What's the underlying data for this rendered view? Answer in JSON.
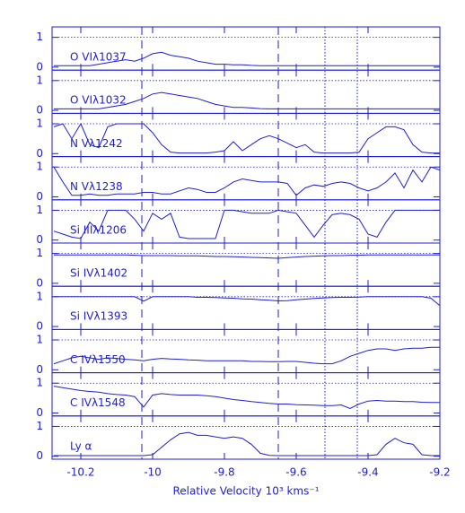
{
  "chart_data": {
    "type": "line",
    "color": "#1f1fd6",
    "xlabel": "Relative Velocity 10³ kms⁻¹",
    "xlim": [
      -10.28,
      -9.2
    ],
    "xticks": [
      -10.2,
      -10,
      -9.8,
      -9.6,
      -9.4,
      -9.2
    ],
    "ylim": [
      -0.1,
      1.35
    ],
    "yticks": [
      0,
      1
    ],
    "reference_level": 1,
    "dashed_lines": [
      -10.03,
      -9.65
    ],
    "dotted_lines": [
      -9.52,
      -9.43
    ],
    "x": [
      -10.275,
      -10.25,
      -10.225,
      -10.2,
      -10.175,
      -10.15,
      -10.125,
      -10.1,
      -10.075,
      -10.05,
      -10.025,
      -10,
      -9.975,
      -9.95,
      -9.925,
      -9.9,
      -9.875,
      -9.85,
      -9.825,
      -9.8,
      -9.775,
      -9.75,
      -9.725,
      -9.7,
      -9.675,
      -9.65,
      -9.625,
      -9.6,
      -9.575,
      -9.55,
      -9.525,
      -9.5,
      -9.475,
      -9.45,
      -9.425,
      -9.4,
      -9.375,
      -9.35,
      -9.325,
      -9.3,
      -9.275,
      -9.25,
      -9.225,
      -9.2
    ],
    "panels": [
      {
        "name": "O VIλ1037",
        "values": [
          0.05,
          0.05,
          0.05,
          0.05,
          0.05,
          0.1,
          0.15,
          0.2,
          0.25,
          0.2,
          0.3,
          0.45,
          0.5,
          0.4,
          0.35,
          0.3,
          0.2,
          0.15,
          0.1,
          0.1,
          0.08,
          0.08,
          0.06,
          0.05,
          0.05,
          0.05,
          0.05,
          0.05,
          0.05,
          0.05,
          0.05,
          0.05,
          0.05,
          0.05,
          0.05,
          0.05,
          0.05,
          0.05,
          0.05,
          0.05,
          0.05,
          0.05,
          0.05,
          0.05
        ]
      },
      {
        "name": "O VIλ1032",
        "values": [
          0.05,
          0.05,
          0.05,
          0.05,
          0.05,
          0.05,
          0.1,
          0.15,
          0.2,
          0.3,
          0.4,
          0.55,
          0.6,
          0.55,
          0.5,
          0.45,
          0.4,
          0.3,
          0.2,
          0.15,
          0.1,
          0.1,
          0.08,
          0.06,
          0.05,
          0.05,
          0.05,
          0.05,
          0.05,
          0.05,
          0.05,
          0.05,
          0.05,
          0.05,
          0.05,
          0.05,
          0.05,
          0.05,
          0.05,
          0.05,
          0.05,
          0.05,
          0.05,
          0.05
        ]
      },
      {
        "name": "N Vλ1242",
        "values": [
          0.9,
          1.0,
          0.5,
          1.0,
          0.3,
          0.2,
          0.9,
          1.0,
          1.0,
          1.0,
          1.0,
          0.7,
          0.3,
          0.05,
          0.02,
          0.02,
          0.02,
          0.02,
          0.05,
          0.1,
          0.4,
          0.1,
          0.3,
          0.5,
          0.6,
          0.5,
          0.35,
          0.2,
          0.3,
          0.05,
          0.02,
          0.02,
          0.02,
          0.02,
          0.05,
          0.5,
          0.7,
          0.9,
          0.9,
          0.8,
          0.3,
          0.05,
          0.02,
          0.02
        ]
      },
      {
        "name": "N Vλ1238",
        "values": [
          1.0,
          0.5,
          0.05,
          0.05,
          0.1,
          0.05,
          0.05,
          0.1,
          0.1,
          0.1,
          0.15,
          0.15,
          0.1,
          0.1,
          0.2,
          0.3,
          0.25,
          0.15,
          0.15,
          0.3,
          0.5,
          0.6,
          0.55,
          0.5,
          0.5,
          0.5,
          0.45,
          0.05,
          0.3,
          0.4,
          0.35,
          0.45,
          0.5,
          0.45,
          0.3,
          0.2,
          0.3,
          0.5,
          0.8,
          0.3,
          0.9,
          0.5,
          1.0,
          0.9
        ]
      },
      {
        "name": "Si IIIλ1206",
        "values": [
          0.3,
          0.2,
          0.1,
          0.05,
          0.6,
          0.3,
          1.0,
          1.0,
          1.0,
          0.7,
          0.3,
          0.9,
          0.7,
          0.9,
          0.1,
          0.05,
          0.05,
          0.05,
          0.05,
          1.0,
          1.0,
          0.95,
          0.9,
          0.9,
          0.9,
          1.0,
          0.95,
          0.9,
          0.5,
          0.1,
          0.5,
          0.85,
          0.9,
          0.85,
          0.7,
          0.2,
          0.1,
          0.6,
          1.0,
          1.0,
          1.0,
          1.0,
          1.0,
          1.0
        ]
      },
      {
        "name": "Si IVλ1402",
        "values": [
          0.95,
          0.95,
          0.95,
          0.95,
          0.95,
          0.95,
          0.95,
          0.95,
          0.95,
          0.94,
          0.93,
          0.93,
          0.93,
          0.93,
          0.92,
          0.92,
          0.92,
          0.91,
          0.9,
          0.9,
          0.89,
          0.88,
          0.87,
          0.86,
          0.85,
          0.84,
          0.86,
          0.88,
          0.9,
          0.91,
          0.92,
          0.93,
          0.93,
          0.94,
          0.94,
          0.95,
          0.95,
          0.95,
          0.95,
          0.95,
          0.95,
          0.95,
          0.95,
          0.95
        ]
      },
      {
        "name": "Si IVλ1393",
        "values": [
          1.0,
          1.0,
          1.0,
          1.0,
          1.0,
          1.0,
          1.0,
          1.0,
          1.0,
          1.0,
          0.85,
          1.0,
          1.0,
          1.0,
          1.0,
          1.0,
          0.98,
          0.98,
          0.97,
          0.96,
          0.95,
          0.93,
          0.92,
          0.9,
          0.88,
          0.86,
          0.87,
          0.9,
          0.92,
          0.94,
          0.96,
          0.97,
          0.98,
          0.98,
          0.99,
          1.0,
          1.0,
          1.0,
          1.0,
          1.0,
          1.0,
          1.0,
          0.95,
          0.7
        ]
      },
      {
        "name": "C IVλ1550",
        "values": [
          0.2,
          0.3,
          0.4,
          0.45,
          0.4,
          0.35,
          0.4,
          0.38,
          0.35,
          0.33,
          0.3,
          0.35,
          0.38,
          0.36,
          0.35,
          0.33,
          0.32,
          0.3,
          0.3,
          0.3,
          0.3,
          0.3,
          0.28,
          0.28,
          0.27,
          0.27,
          0.28,
          0.28,
          0.25,
          0.22,
          0.2,
          0.2,
          0.3,
          0.45,
          0.55,
          0.65,
          0.7,
          0.7,
          0.65,
          0.7,
          0.72,
          0.72,
          0.75,
          0.75
        ]
      },
      {
        "name": "C IVλ1548",
        "values": [
          0.9,
          0.85,
          0.8,
          0.75,
          0.72,
          0.7,
          0.65,
          0.62,
          0.6,
          0.55,
          0.2,
          0.6,
          0.65,
          0.62,
          0.6,
          0.6,
          0.6,
          0.58,
          0.55,
          0.5,
          0.45,
          0.42,
          0.38,
          0.35,
          0.32,
          0.3,
          0.3,
          0.28,
          0.27,
          0.26,
          0.25,
          0.25,
          0.27,
          0.15,
          0.3,
          0.4,
          0.42,
          0.4,
          0.4,
          0.38,
          0.38,
          0.36,
          0.35,
          0.35
        ]
      },
      {
        "name": "Ly α",
        "values": [
          0.02,
          0.02,
          0.02,
          0.02,
          0.02,
          0.02,
          0.02,
          0.02,
          0.02,
          0.02,
          0.02,
          0.05,
          0.3,
          0.55,
          0.75,
          0.8,
          0.7,
          0.7,
          0.65,
          0.6,
          0.65,
          0.6,
          0.4,
          0.1,
          0.03,
          0.02,
          0.02,
          0.02,
          0.02,
          0.02,
          0.02,
          0.02,
          0.02,
          0.02,
          0.02,
          0.02,
          0.05,
          0.4,
          0.6,
          0.45,
          0.4,
          0.05,
          0.02,
          0.02
        ]
      }
    ]
  }
}
